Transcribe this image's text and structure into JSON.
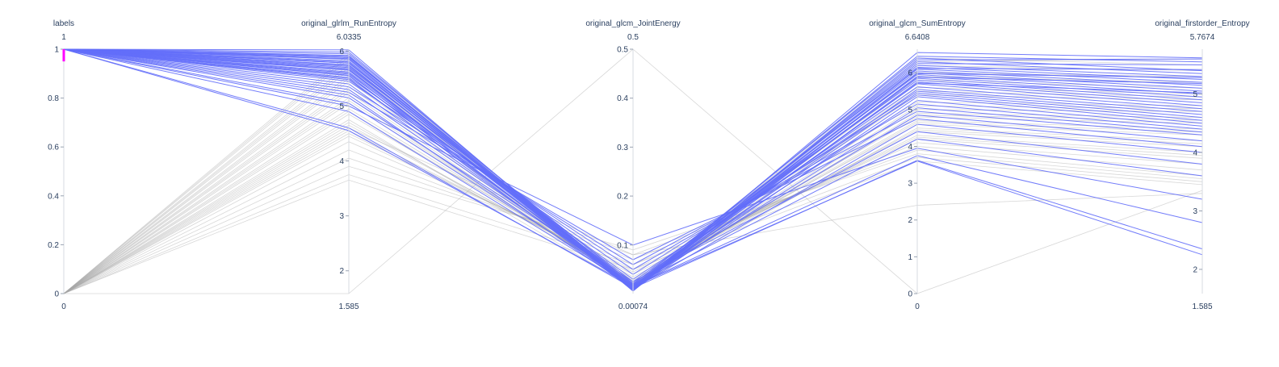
{
  "chart_data": {
    "type": "parallel_coordinates",
    "colors": {
      "selected": "#636efa",
      "unselected": "#a6a6a6",
      "brush": "#ff00ff",
      "text": "#2a3f5f"
    },
    "dimensions": [
      {
        "label": "labels",
        "range": [
          0,
          1
        ],
        "range_min_label": "0",
        "range_max_label": "1",
        "ticks": [
          0,
          0.2,
          0.4,
          0.6,
          0.8,
          1
        ],
        "tick_labels": [
          "0",
          "0.2",
          "0.4",
          "0.6",
          "0.8",
          "1"
        ],
        "constraint": [
          0.95,
          1
        ]
      },
      {
        "label": "original_glrlm_RunEntropy",
        "range": [
          1.585,
          6.0335
        ],
        "range_min_label": "1.585",
        "range_max_label": "6.0335",
        "ticks": [
          2,
          3,
          4,
          5,
          6
        ],
        "tick_labels": [
          "2",
          "3",
          "4",
          "5",
          "6"
        ]
      },
      {
        "label": "original_glcm_JointEnergy",
        "range": [
          0.00074,
          0.5
        ],
        "range_min_label": "0.00074",
        "range_max_label": "0.5",
        "ticks": [
          0.1,
          0.2,
          0.3,
          0.4,
          0.5
        ],
        "tick_labels": [
          "0.1",
          "0.2",
          "0.3",
          "0.4",
          "0.5"
        ]
      },
      {
        "label": "original_glcm_SumEntropy",
        "range": [
          0,
          6.6408
        ],
        "range_min_label": "0",
        "range_max_label": "6.6408",
        "ticks": [
          0,
          1,
          2,
          3,
          4,
          5,
          6
        ],
        "tick_labels": [
          "0",
          "1",
          "2",
          "3",
          "4",
          "5",
          "6"
        ]
      },
      {
        "label": "original_firstorder_Entropy",
        "range": [
          1.585,
          5.7674
        ],
        "range_min_label": "1.585",
        "range_max_label": "5.7674",
        "ticks": [
          2,
          3,
          4,
          5
        ],
        "tick_labels": [
          "2",
          "3",
          "4",
          "5"
        ]
      }
    ],
    "selected_lines": [
      [
        1,
        6.02,
        0.006,
        6.55,
        5.62
      ],
      [
        1,
        5.98,
        0.01,
        6.45,
        5.55
      ],
      [
        1,
        5.95,
        0.014,
        6.4,
        5.4
      ],
      [
        1,
        5.92,
        0.008,
        6.3,
        5.35
      ],
      [
        1,
        5.9,
        0.012,
        6.2,
        5.3
      ],
      [
        1,
        5.88,
        0.02,
        6.15,
        5.25
      ],
      [
        1,
        5.85,
        0.009,
        6.1,
        5.2
      ],
      [
        1,
        5.82,
        0.015,
        6.05,
        5.15
      ],
      [
        1,
        5.8,
        0.011,
        6.0,
        5.1
      ],
      [
        1,
        5.78,
        0.018,
        5.95,
        5.05
      ],
      [
        1,
        5.75,
        0.007,
        5.9,
        5.0
      ],
      [
        1,
        5.72,
        0.013,
        5.85,
        4.95
      ],
      [
        1,
        5.7,
        0.025,
        5.8,
        4.9
      ],
      [
        1,
        5.68,
        0.009,
        5.75,
        4.85
      ],
      [
        1,
        5.65,
        0.016,
        5.7,
        4.8
      ],
      [
        1,
        5.62,
        0.022,
        5.62,
        4.75
      ],
      [
        1,
        5.6,
        0.01,
        5.55,
        4.7
      ],
      [
        1,
        5.58,
        0.03,
        5.5,
        4.65
      ],
      [
        1,
        5.55,
        0.012,
        5.45,
        4.6
      ],
      [
        1,
        5.52,
        0.04,
        5.4,
        4.55
      ],
      [
        1,
        5.5,
        0.008,
        5.35,
        4.5
      ],
      [
        1,
        5.48,
        0.017,
        5.25,
        4.45
      ],
      [
        1,
        5.45,
        0.05,
        5.15,
        4.4
      ],
      [
        1,
        5.4,
        0.014,
        5.05,
        4.35
      ],
      [
        1,
        5.35,
        0.06,
        4.95,
        4.3
      ],
      [
        1,
        5.3,
        0.02,
        4.85,
        4.2
      ],
      [
        1,
        5.25,
        0.07,
        4.75,
        4.1
      ],
      [
        1,
        5.2,
        0.011,
        4.6,
        4.0
      ],
      [
        1,
        5.15,
        0.025,
        4.4,
        3.8
      ],
      [
        1,
        5.05,
        0.018,
        4.2,
        3.6
      ],
      [
        1,
        5.0,
        0.1,
        3.95,
        3.2
      ],
      [
        1,
        4.9,
        0.016,
        3.75,
        2.8
      ],
      [
        1,
        4.6,
        0.012,
        3.62,
        2.35
      ],
      [
        1,
        4.55,
        0.015,
        3.6,
        2.25
      ],
      [
        1,
        5.9,
        0.006,
        6.35,
        5.6
      ],
      [
        1,
        5.86,
        0.01,
        6.25,
        5.5
      ],
      [
        1,
        5.78,
        0.012,
        6.12,
        5.42
      ],
      [
        1,
        5.74,
        0.009,
        5.98,
        5.28
      ],
      [
        1,
        5.66,
        0.014,
        5.88,
        5.18
      ],
      [
        1,
        5.56,
        0.011,
        5.72,
        5.02
      ]
    ],
    "unselected_lines": [
      [
        0,
        5.95,
        0.008,
        6.4,
        5.5
      ],
      [
        0,
        5.85,
        0.01,
        6.2,
        5.4
      ],
      [
        0,
        5.75,
        0.012,
        6.0,
        5.3
      ],
      [
        0,
        5.65,
        0.015,
        5.8,
        5.1
      ],
      [
        0,
        5.55,
        0.011,
        5.6,
        5.0
      ],
      [
        0,
        5.45,
        0.018,
        5.4,
        4.9
      ],
      [
        0,
        5.35,
        0.02,
        5.2,
        4.8
      ],
      [
        0,
        5.25,
        0.014,
        5.0,
        4.7
      ],
      [
        0,
        5.15,
        0.016,
        4.9,
        4.6
      ],
      [
        0,
        5.05,
        0.022,
        4.8,
        4.5
      ],
      [
        0,
        4.95,
        0.025,
        4.7,
        4.4
      ],
      [
        0,
        4.85,
        0.03,
        4.6,
        4.3
      ],
      [
        0,
        4.75,
        0.013,
        4.5,
        4.2
      ],
      [
        0,
        4.65,
        0.035,
        4.4,
        4.1
      ],
      [
        0,
        4.55,
        0.04,
        4.3,
        4.0
      ],
      [
        0,
        4.45,
        0.05,
        4.2,
        3.9
      ],
      [
        0,
        4.35,
        0.06,
        4.1,
        3.8
      ],
      [
        0,
        4.2,
        0.07,
        4.0,
        3.7
      ],
      [
        0,
        4.05,
        0.08,
        3.9,
        3.6
      ],
      [
        0,
        3.9,
        0.09,
        3.8,
        3.55
      ],
      [
        0,
        3.75,
        0.06,
        3.7,
        3.5
      ],
      [
        0,
        3.65,
        0.05,
        3.6,
        3.45
      ],
      [
        0,
        5.9,
        0.009,
        6.3,
        5.6
      ],
      [
        0,
        5.7,
        0.011,
        5.9,
        5.2
      ],
      [
        0,
        5.5,
        0.013,
        5.5,
        4.95
      ],
      [
        0,
        5.3,
        0.017,
        5.1,
        4.75
      ],
      [
        0,
        5.1,
        0.019,
        4.85,
        4.55
      ],
      [
        0,
        4.9,
        0.024,
        4.65,
        4.35
      ],
      [
        0,
        4.7,
        0.028,
        4.45,
        4.15
      ],
      [
        0,
        4.5,
        0.045,
        4.25,
        3.95
      ],
      [
        0,
        1.585,
        0.5,
        0,
        3.35
      ],
      [
        0,
        4.6,
        0.08,
        2.4,
        3.3
      ]
    ]
  }
}
